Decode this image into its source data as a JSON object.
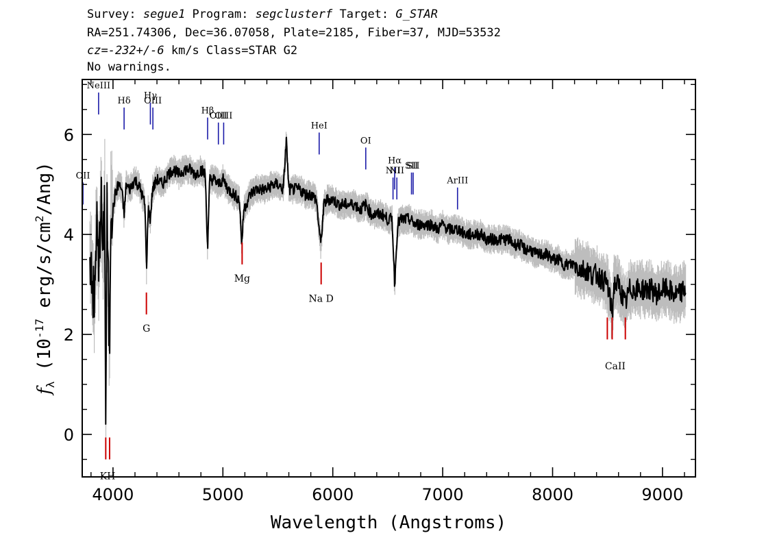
{
  "header": {
    "line1": {
      "survey_label": "Survey: ",
      "survey": "segue1",
      "program_label": " Program: ",
      "program": "segclusterf",
      "target_label": " Target: ",
      "target": "G_STAR"
    },
    "line2": "RA=251.74306, Dec=36.07058, Plate=2185, Fiber=37, MJD=53532",
    "line3": {
      "cz_label": "cz=",
      "cz": "-232+/-6",
      "cz_unit": " km/s Class=STAR G2"
    },
    "line4": "No warnings."
  },
  "chart_data": {
    "type": "line",
    "xlabel": "Wavelength (Angstroms)",
    "ylabel_parts": [
      "f",
      "λ",
      " (10",
      "-17",
      " erg/s/cm",
      "2",
      "/Ang)"
    ],
    "xlim": [
      3720,
      9300
    ],
    "ylim": [
      -0.85,
      7.1
    ],
    "x_ticks": [
      4000,
      5000,
      6000,
      7000,
      8000,
      9000
    ],
    "y_ticks": [
      0,
      2,
      4,
      6
    ],
    "colors": {
      "flux": "#000000",
      "error": "#bdbdbd",
      "emission": "#1a1aa8",
      "absorption": "#cc0000"
    },
    "series": [
      {
        "name": "flux",
        "points": [
          [
            3800,
            3.6
          ],
          [
            3830,
            2.4
          ],
          [
            3850,
            4.3
          ],
          [
            3870,
            3.2
          ],
          [
            3890,
            4.8
          ],
          [
            3910,
            3.4
          ],
          [
            3925,
            4.9
          ],
          [
            3934,
            0.0
          ],
          [
            3945,
            4.6
          ],
          [
            3955,
            3.2
          ],
          [
            3968,
            1.4
          ],
          [
            3980,
            4.7
          ],
          [
            4000,
            4.5
          ],
          [
            4020,
            4.8
          ],
          [
            4050,
            5.0
          ],
          [
            4080,
            4.9
          ],
          [
            4101,
            4.4
          ],
          [
            4120,
            5.0
          ],
          [
            4150,
            4.9
          ],
          [
            4200,
            5.1
          ],
          [
            4250,
            4.9
          ],
          [
            4290,
            4.6
          ],
          [
            4305,
            3.3
          ],
          [
            4320,
            4.5
          ],
          [
            4340,
            4.3
          ],
          [
            4360,
            4.9
          ],
          [
            4400,
            5.1
          ],
          [
            4450,
            5.0
          ],
          [
            4500,
            5.2
          ],
          [
            4550,
            5.3
          ],
          [
            4600,
            5.2
          ],
          [
            4650,
            5.3
          ],
          [
            4700,
            5.3
          ],
          [
            4750,
            5.2
          ],
          [
            4800,
            5.3
          ],
          [
            4840,
            5.2
          ],
          [
            4861,
            3.7
          ],
          [
            4880,
            5.1
          ],
          [
            4920,
            5.1
          ],
          [
            4960,
            5.0
          ],
          [
            5000,
            5.1
          ],
          [
            5050,
            4.9
          ],
          [
            5100,
            4.8
          ],
          [
            5150,
            4.7
          ],
          [
            5172,
            3.8
          ],
          [
            5190,
            4.5
          ],
          [
            5250,
            4.8
          ],
          [
            5300,
            4.9
          ],
          [
            5350,
            4.9
          ],
          [
            5400,
            4.9
          ],
          [
            5450,
            5.0
          ],
          [
            5500,
            5.0
          ],
          [
            5550,
            4.9
          ],
          [
            5577,
            5.9
          ],
          [
            5600,
            4.9
          ],
          [
            5650,
            4.9
          ],
          [
            5700,
            4.9
          ],
          [
            5750,
            4.8
          ],
          [
            5800,
            4.8
          ],
          [
            5850,
            4.7
          ],
          [
            5890,
            3.8
          ],
          [
            5920,
            4.6
          ],
          [
            5950,
            4.7
          ],
          [
            6000,
            4.7
          ],
          [
            6050,
            4.6
          ],
          [
            6100,
            4.6
          ],
          [
            6150,
            4.6
          ],
          [
            6200,
            4.6
          ],
          [
            6250,
            4.5
          ],
          [
            6300,
            4.6
          ],
          [
            6350,
            4.4
          ],
          [
            6400,
            4.4
          ],
          [
            6450,
            4.4
          ],
          [
            6500,
            4.3
          ],
          [
            6540,
            4.3
          ],
          [
            6563,
            3.0
          ],
          [
            6590,
            4.2
          ],
          [
            6620,
            4.3
          ],
          [
            6650,
            4.3
          ],
          [
            6700,
            4.3
          ],
          [
            6750,
            4.2
          ],
          [
            6800,
            4.2
          ],
          [
            6850,
            4.2
          ],
          [
            6900,
            4.2
          ],
          [
            6950,
            4.1
          ],
          [
            7000,
            4.2
          ],
          [
            7050,
            4.1
          ],
          [
            7100,
            4.1
          ],
          [
            7150,
            4.1
          ],
          [
            7200,
            4.0
          ],
          [
            7250,
            4.0
          ],
          [
            7300,
            4.0
          ],
          [
            7350,
            4.0
          ],
          [
            7400,
            3.9
          ],
          [
            7450,
            3.9
          ],
          [
            7500,
            3.9
          ],
          [
            7550,
            3.9
          ],
          [
            7600,
            3.9
          ],
          [
            7650,
            3.8
          ],
          [
            7700,
            3.8
          ],
          [
            7750,
            3.7
          ],
          [
            7800,
            3.7
          ],
          [
            7850,
            3.6
          ],
          [
            7900,
            3.6
          ],
          [
            7950,
            3.6
          ],
          [
            8000,
            3.5
          ],
          [
            8050,
            3.5
          ],
          [
            8100,
            3.4
          ],
          [
            8150,
            3.4
          ],
          [
            8200,
            3.4
          ],
          [
            8250,
            3.3
          ],
          [
            8300,
            3.3
          ],
          [
            8350,
            3.2
          ],
          [
            8400,
            3.2
          ],
          [
            8450,
            3.1
          ],
          [
            8500,
            3.0
          ],
          [
            8542,
            2.4
          ],
          [
            8560,
            3.0
          ],
          [
            8600,
            3.0
          ],
          [
            8662,
            2.6
          ],
          [
            8700,
            2.9
          ],
          [
            8750,
            2.9
          ],
          [
            8800,
            2.9
          ],
          [
            8850,
            2.9
          ],
          [
            8900,
            2.9
          ],
          [
            8950,
            2.8
          ],
          [
            9000,
            2.9
          ],
          [
            9050,
            2.9
          ],
          [
            9100,
            2.8
          ],
          [
            9150,
            2.8
          ],
          [
            9200,
            2.9
          ]
        ]
      }
    ],
    "emission_lines": [
      {
        "label": "OII",
        "x": 3727,
        "y": 4.6
      },
      {
        "label": "NeIII",
        "x": 3869,
        "y": 6.4
      },
      {
        "label": "Hδ",
        "x": 4101,
        "y": 6.1
      },
      {
        "label": "Hγ",
        "x": 4340,
        "y": 6.2
      },
      {
        "label": "OIII",
        "x": 4363,
        "y": 6.1
      },
      {
        "label": "Hβ",
        "x": 4861,
        "y": 5.9
      },
      {
        "label": "OIII",
        "x": 4959,
        "y": 5.8
      },
      {
        "label": "OIII",
        "x": 5007,
        "y": 5.8
      },
      {
        "label": "HeI",
        "x": 5876,
        "y": 5.6
      },
      {
        "label": "OI",
        "x": 6300,
        "y": 5.3
      },
      {
        "label": "NII",
        "x": 6548,
        "y": 4.7
      },
      {
        "label": "Hα",
        "x": 6563,
        "y": 4.9
      },
      {
        "label": "NII",
        "x": 6583,
        "y": 4.7
      },
      {
        "label": "SII",
        "x": 6716,
        "y": 4.8
      },
      {
        "label": "SII",
        "x": 6731,
        "y": 4.8
      },
      {
        "label": "ArIII",
        "x": 7135,
        "y": 4.5
      }
    ],
    "absorption_lines": [
      {
        "label": "K",
        "x": 3934,
        "y": -0.5
      },
      {
        "label": "H",
        "x": 3969,
        "y": -0.5
      },
      {
        "label": "G",
        "x": 4304,
        "y": 2.4
      },
      {
        "label": "Mg",
        "x": 5175,
        "y": 3.4
      },
      {
        "label": "Na D",
        "x": 5894,
        "y": 3.0
      },
      {
        "label": "CaII",
        "x": 8498,
        "y": 1.9
      },
      {
        "label": "CaII",
        "x": 8542,
        "y": 1.9
      },
      {
        "label": "CaII",
        "x": 8662,
        "y": 1.9
      }
    ],
    "absorption_labels": [
      {
        "text": "KH",
        "x": 3951,
        "y": -0.65
      },
      {
        "text": "G",
        "x": 4304,
        "y": 2.3
      },
      {
        "text": "Mg",
        "x": 5175,
        "y": 3.3
      },
      {
        "text": "Na D",
        "x": 5894,
        "y": 2.9
      },
      {
        "text": "CaII",
        "x": 8570,
        "y": 1.55
      }
    ]
  }
}
